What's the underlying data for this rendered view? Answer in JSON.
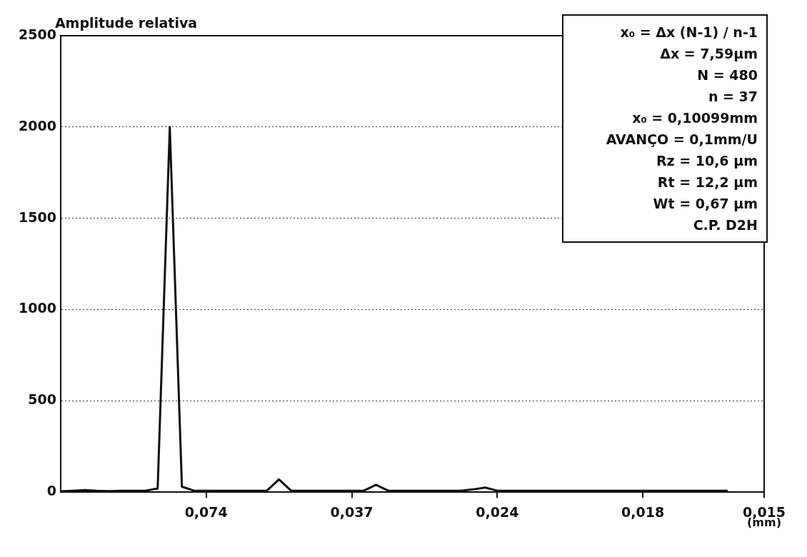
{
  "chart_data": {
    "type": "line",
    "ylabel": "Amplitude relativa",
    "xlabel": "(mm)",
    "categories": [
      null,
      null,
      null,
      null,
      null,
      null,
      null,
      null,
      null,
      null,
      null,
      null,
      "0,074",
      null,
      null,
      null,
      null,
      null,
      null,
      null,
      null,
      null,
      null,
      null,
      "0,037",
      null,
      null,
      null,
      null,
      null,
      null,
      null,
      null,
      null,
      null,
      null,
      "0,024",
      null,
      null,
      null,
      null,
      null,
      null,
      null,
      null,
      null,
      null,
      null,
      "0,018",
      null,
      null,
      null,
      null,
      null,
      null,
      null,
      null,
      null,
      "0,015"
    ],
    "series": [
      {
        "color": "#111111",
        "values": [
          5,
          8,
          12,
          8,
          6,
          8,
          8,
          8,
          20,
          2000,
          30,
          8,
          8,
          8,
          8,
          8,
          8,
          8,
          70,
          8,
          8,
          8,
          8,
          8,
          8,
          8,
          40,
          8,
          8,
          8,
          8,
          8,
          8,
          8,
          15,
          25,
          8,
          8,
          8,
          8,
          8,
          8,
          8,
          8,
          8,
          8,
          8,
          8,
          8,
          8,
          8,
          8,
          8,
          8,
          8,
          8,
          null,
          null,
          null
        ]
      }
    ],
    "ylim": [
      0,
      2500
    ],
    "yticks": [
      0,
      500,
      1000,
      1500,
      2000,
      2500
    ],
    "grid": "y",
    "annotations": [
      "x₀ = Δx (N-1) / n-1",
      "Δx = 7,59µm",
      "N = 480",
      "n = 37",
      "x₀ = 0,10099mm",
      "AVANÇO = 0,1mm/U",
      "Rz = 10,6 µm",
      "Rt = 12,2 µm",
      "Wt = 0,67 µm",
      "C.P. D2H"
    ]
  }
}
